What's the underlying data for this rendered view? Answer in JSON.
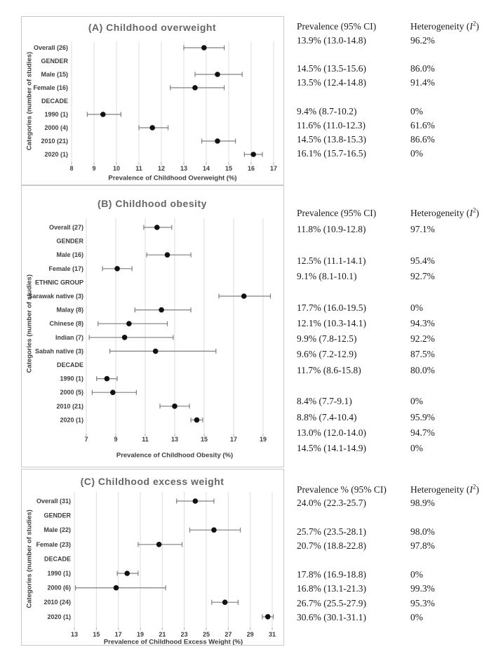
{
  "colors": {
    "marker": "#111111",
    "error_bar": "#7f7f7f",
    "gridline": "#dcdcdc",
    "axis_tick": "#b0b0b0",
    "chart_title": "#666666",
    "axis_text": "#3d3d3d",
    "panel_border": "#c9c9c9",
    "table_text": "#1b1b1b",
    "background": "#ffffff"
  },
  "chart_data": [
    {
      "id": "A",
      "type": "forest",
      "title": "(A) Childhood overweight",
      "xlabel": "Prevalence of Childhood Overweight (%)",
      "ylabel": "Categories (number of studies)",
      "xlim": [
        8,
        17
      ],
      "xticks": [
        8,
        9,
        10,
        11,
        12,
        13,
        14,
        15,
        16,
        17
      ],
      "grid": true,
      "table_headers": {
        "prevalence": "Prevalence (95% CI)",
        "heterogeneity": "Heterogeneity (I²)"
      },
      "rows": [
        {
          "label": "Overall (26)",
          "mean": 13.9,
          "ci_lo": 13.0,
          "ci_hi": 14.8,
          "prevalence": "13.9% (13.0-14.8)",
          "heterogeneity": "96.2%"
        },
        {
          "label": "GENDER",
          "section": true
        },
        {
          "label": "Male (15)",
          "mean": 14.5,
          "ci_lo": 13.5,
          "ci_hi": 15.6,
          "prevalence": "14.5% (13.5-15.6)",
          "heterogeneity": "86.0%"
        },
        {
          "label": "Female (16)",
          "mean": 13.5,
          "ci_lo": 12.4,
          "ci_hi": 14.8,
          "prevalence": "13.5% (12.4-14.8)",
          "heterogeneity": "91.4%"
        },
        {
          "label": "DECADE",
          "section": true
        },
        {
          "label": "1990 (1)",
          "mean": 9.4,
          "ci_lo": 8.7,
          "ci_hi": 10.2,
          "prevalence": "9.4% (8.7-10.2)",
          "heterogeneity": "0%"
        },
        {
          "label": "2000 (4)",
          "mean": 11.6,
          "ci_lo": 11.0,
          "ci_hi": 12.3,
          "prevalence": "11.6% (11.0-12.3)",
          "heterogeneity": "61.6%"
        },
        {
          "label": "2010 (21)",
          "mean": 14.5,
          "ci_lo": 13.8,
          "ci_hi": 15.3,
          "prevalence": "14.5% (13.8-15.3)",
          "heterogeneity": "86.6%"
        },
        {
          "label": "2020 (1)",
          "mean": 16.1,
          "ci_lo": 15.7,
          "ci_hi": 16.5,
          "prevalence": "16.1% (15.7-16.5)",
          "heterogeneity": "0%"
        }
      ]
    },
    {
      "id": "B",
      "type": "forest",
      "title": "(B) Childhood obesity",
      "xlabel": "Prevalence of Childhood Obesity (%)",
      "ylabel": "Categories (number of studies)",
      "xlim": [
        7,
        19
      ],
      "xticks": [
        7,
        9,
        11,
        13,
        15,
        17,
        19
      ],
      "grid": true,
      "table_headers": {
        "prevalence": "Prevalence (95% CI)",
        "heterogeneity": "Heterogeneity (I²)"
      },
      "rows": [
        {
          "label": "Overall (27)",
          "mean": 11.8,
          "ci_lo": 10.9,
          "ci_hi": 12.8,
          "prevalence": "11.8% (10.9-12.8)",
          "heterogeneity": "97.1%"
        },
        {
          "label": "GENDER",
          "section": true
        },
        {
          "label": "Male (16)",
          "mean": 12.5,
          "ci_lo": 11.1,
          "ci_hi": 14.1,
          "prevalence": "12.5% (11.1-14.1)",
          "heterogeneity": "95.4%"
        },
        {
          "label": "Female (17)",
          "mean": 9.1,
          "ci_lo": 8.1,
          "ci_hi": 10.1,
          "prevalence": "9.1% (8.1-10.1)",
          "heterogeneity": "92.7%"
        },
        {
          "label": "ETHNIC GROUP",
          "section": true
        },
        {
          "label": "Sarawak native (3)",
          "mean": 17.7,
          "ci_lo": 16.0,
          "ci_hi": 19.5,
          "prevalence": "17.7% (16.0-19.5)",
          "heterogeneity": "0%"
        },
        {
          "label": "Malay (8)",
          "mean": 12.1,
          "ci_lo": 10.3,
          "ci_hi": 14.1,
          "prevalence": "12.1% (10.3-14.1)",
          "heterogeneity": "94.3%"
        },
        {
          "label": "Chinese (8)",
          "mean": 9.9,
          "ci_lo": 7.8,
          "ci_hi": 12.5,
          "prevalence": "9.9% (7.8-12.5)",
          "heterogeneity": "92.2%"
        },
        {
          "label": "Indian (7)",
          "mean": 9.6,
          "ci_lo": 7.2,
          "ci_hi": 12.9,
          "prevalence": "9.6% (7.2-12.9)",
          "heterogeneity": "87.5%"
        },
        {
          "label": "Sabah native (3)",
          "mean": 11.7,
          "ci_lo": 8.6,
          "ci_hi": 15.8,
          "prevalence": "11.7% (8.6-15.8)",
          "heterogeneity": "80.0%"
        },
        {
          "label": "DECADE",
          "section": true
        },
        {
          "label": "1990 (1)",
          "mean": 8.4,
          "ci_lo": 7.7,
          "ci_hi": 9.1,
          "prevalence": "8.4% (7.7-9.1)",
          "heterogeneity": "0%"
        },
        {
          "label": "2000 (5)",
          "mean": 8.8,
          "ci_lo": 7.4,
          "ci_hi": 10.4,
          "prevalence": "8.8% (7.4-10.4)",
          "heterogeneity": "95.9%"
        },
        {
          "label": "2010 (21)",
          "mean": 13.0,
          "ci_lo": 12.0,
          "ci_hi": 14.0,
          "prevalence": "13.0% (12.0-14.0)",
          "heterogeneity": "94.7%"
        },
        {
          "label": "2020 (1)",
          "mean": 14.5,
          "ci_lo": 14.1,
          "ci_hi": 14.9,
          "prevalence": "14.5% (14.1-14.9)",
          "heterogeneity": "0%"
        }
      ]
    },
    {
      "id": "C",
      "type": "forest",
      "title": "(C) Childhood excess weight",
      "xlabel": "Prevalence of Childhood Excess Weight (%)",
      "ylabel": "Categories (number of studies)",
      "xlim": [
        13,
        31
      ],
      "xticks": [
        13,
        15,
        17,
        19,
        21,
        23,
        25,
        27,
        29,
        31
      ],
      "grid": true,
      "table_headers": {
        "prevalence": "Prevalence % (95% CI)",
        "heterogeneity": "Heterogeneity (I²)"
      },
      "rows": [
        {
          "label": "Overall (31)",
          "mean": 24.0,
          "ci_lo": 22.3,
          "ci_hi": 25.7,
          "prevalence": "24.0% (22.3-25.7)",
          "heterogeneity": "98.9%"
        },
        {
          "label": "GENDER",
          "section": true
        },
        {
          "label": "Male (22)",
          "mean": 25.7,
          "ci_lo": 23.5,
          "ci_hi": 28.1,
          "prevalence": "25.7% (23.5-28.1)",
          "heterogeneity": "98.0%"
        },
        {
          "label": "Female (23)",
          "mean": 20.7,
          "ci_lo": 18.8,
          "ci_hi": 22.8,
          "prevalence": "20.7% (18.8-22.8)",
          "heterogeneity": "97.8%"
        },
        {
          "label": "DECADE",
          "section": true
        },
        {
          "label": "1990 (1)",
          "mean": 17.8,
          "ci_lo": 16.9,
          "ci_hi": 18.8,
          "prevalence": "17.8% (16.9-18.8)",
          "heterogeneity": "0%"
        },
        {
          "label": "2000 (6)",
          "mean": 16.8,
          "ci_lo": 13.1,
          "ci_hi": 21.3,
          "prevalence": "16.8% (13.1-21.3)",
          "heterogeneity": "99.3%"
        },
        {
          "label": "2010 (24)",
          "mean": 26.7,
          "ci_lo": 25.5,
          "ci_hi": 27.9,
          "prevalence": "26.7% (25.5-27.9)",
          "heterogeneity": "95.3%"
        },
        {
          "label": "2020 (1)",
          "mean": 30.6,
          "ci_lo": 30.1,
          "ci_hi": 31.1,
          "prevalence": "30.6% (30.1-31.1)",
          "heterogeneity": "0%"
        }
      ]
    }
  ]
}
